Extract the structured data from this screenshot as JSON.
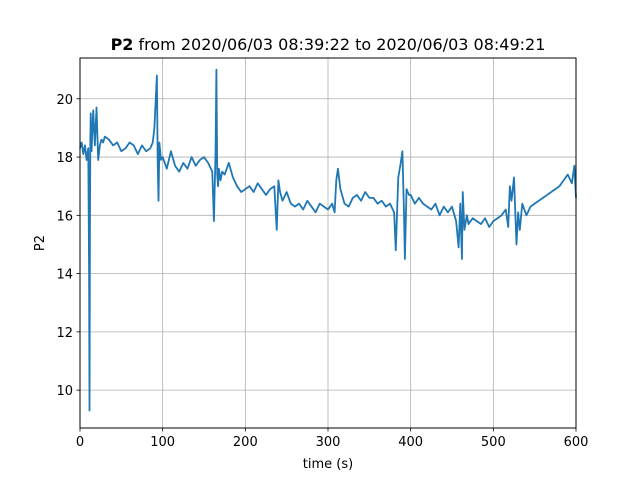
{
  "chart_data": {
    "type": "line",
    "title_bold": "P2",
    "title_rest": " from 2020/06/03 08:39:22 to 2020/06/03 08:49:21",
    "xlabel": "time (s)",
    "ylabel": "P2",
    "xlim": [
      0,
      600
    ],
    "ylim": [
      8.7,
      21.4
    ],
    "xticks": [
      0,
      100,
      200,
      300,
      400,
      500,
      600
    ],
    "yticks": [
      10,
      12,
      14,
      16,
      18,
      20
    ],
    "grid": true,
    "colors": {
      "series": "#1f77b4",
      "grid": "#b0b0b0",
      "axes": "#000000"
    },
    "series": [
      {
        "x": [
          0,
          2,
          4,
          6,
          8,
          10,
          11,
          11.5,
          12,
          12.5,
          13,
          14,
          16,
          18,
          20,
          22,
          24,
          26,
          28,
          30,
          35,
          40,
          45,
          50,
          55,
          60,
          65,
          70,
          75,
          80,
          85,
          88,
          90,
          92,
          93,
          94,
          95,
          96,
          98,
          100,
          105,
          110,
          115,
          120,
          125,
          130,
          135,
          140,
          145,
          150,
          155,
          160,
          162,
          164,
          165,
          166,
          167,
          168,
          170,
          172,
          175,
          180,
          185,
          190,
          195,
          200,
          205,
          210,
          215,
          220,
          225,
          230,
          235,
          238,
          240,
          242,
          245,
          250,
          255,
          260,
          265,
          270,
          275,
          280,
          285,
          290,
          295,
          300,
          305,
          308,
          310,
          312,
          315,
          320,
          325,
          330,
          335,
          340,
          345,
          350,
          355,
          360,
          365,
          370,
          375,
          380,
          382,
          385,
          388,
          390,
          392,
          393,
          395,
          398,
          400,
          405,
          410,
          415,
          420,
          425,
          430,
          435,
          440,
          445,
          450,
          455,
          458,
          460,
          462,
          463,
          465,
          468,
          470,
          475,
          480,
          485,
          490,
          495,
          500,
          505,
          510,
          515,
          518,
          520,
          522,
          525,
          528,
          530,
          532,
          535,
          540,
          545,
          550,
          555,
          560,
          565,
          570,
          575,
          580,
          585,
          590,
          595,
          598,
          600
        ],
        "y": [
          18.3,
          18.5,
          18.1,
          18.4,
          17.9,
          18.3,
          14.0,
          9.3,
          15.5,
          18.6,
          19.5,
          18.2,
          19.6,
          18.4,
          19.7,
          17.9,
          18.4,
          18.6,
          18.5,
          18.7,
          18.6,
          18.4,
          18.5,
          18.2,
          18.3,
          18.5,
          18.4,
          18.1,
          18.4,
          18.2,
          18.3,
          18.5,
          19.0,
          20.2,
          20.8,
          17.8,
          16.5,
          18.5,
          17.9,
          18.0,
          17.6,
          18.2,
          17.7,
          17.5,
          17.8,
          17.6,
          18.0,
          17.7,
          17.9,
          18.0,
          17.8,
          17.5,
          15.8,
          18.2,
          21.0,
          17.4,
          17.0,
          17.6,
          17.2,
          17.5,
          17.4,
          17.8,
          17.3,
          17.0,
          16.8,
          16.9,
          17.0,
          16.8,
          17.1,
          16.9,
          16.7,
          16.9,
          17.0,
          15.5,
          17.2,
          16.8,
          16.5,
          16.8,
          16.4,
          16.3,
          16.4,
          16.2,
          16.5,
          16.3,
          16.1,
          16.4,
          16.3,
          16.2,
          16.4,
          16.1,
          17.2,
          17.6,
          16.9,
          16.4,
          16.3,
          16.6,
          16.7,
          16.5,
          16.8,
          16.6,
          16.6,
          16.4,
          16.5,
          16.3,
          16.4,
          16.1,
          14.8,
          17.3,
          17.8,
          18.2,
          16.0,
          14.5,
          16.9,
          16.7,
          16.7,
          16.4,
          16.6,
          16.4,
          16.3,
          16.2,
          16.4,
          16.0,
          16.3,
          16.1,
          16.3,
          15.8,
          14.9,
          16.4,
          14.5,
          16.8,
          15.5,
          16.0,
          15.7,
          15.9,
          15.8,
          15.7,
          15.9,
          15.6,
          15.8,
          15.9,
          16.0,
          16.2,
          15.6,
          17.0,
          16.5,
          17.3,
          15.0,
          16.1,
          15.5,
          16.4,
          16.0,
          16.3,
          16.4,
          16.5,
          16.6,
          16.7,
          16.8,
          16.9,
          17.0,
          17.2,
          17.4,
          17.1,
          17.7,
          16.6
        ]
      }
    ]
  }
}
